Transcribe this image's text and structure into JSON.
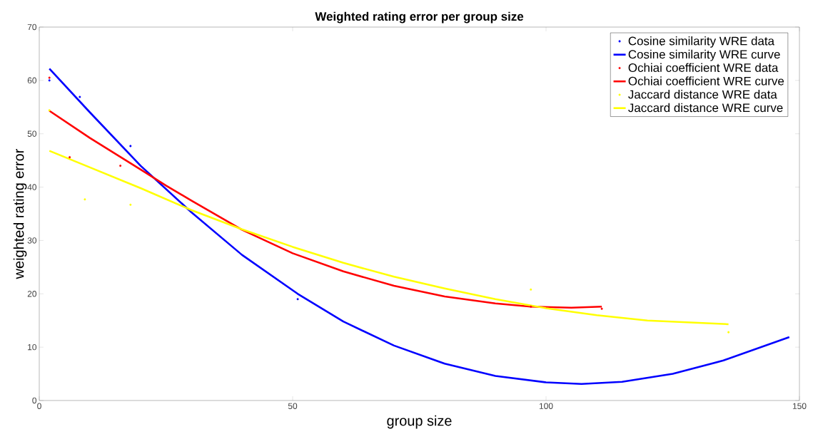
{
  "chart_data": {
    "type": "line",
    "title": "Weighted rating error per group size",
    "xlabel": "group size",
    "ylabel": "weighted rating error",
    "xlim": [
      0,
      150
    ],
    "ylim": [
      0,
      70
    ],
    "xticks": [
      0,
      50,
      100,
      150
    ],
    "yticks": [
      0,
      10,
      20,
      30,
      40,
      50,
      60,
      70
    ],
    "grid": false,
    "legend": "top right",
    "series": [
      {
        "name": "Cosine similarity WRE data",
        "type": "scatter",
        "marker": "circle",
        "color": "#0000ff",
        "x": [
          2,
          8,
          18,
          51
        ],
        "values": [
          60.0,
          56.9,
          47.7,
          19.0
        ]
      },
      {
        "name": "Cosine similarity WRE curve",
        "marker": "none",
        "color": "#0000ff",
        "x": [
          2,
          10,
          20,
          30,
          40,
          51,
          60,
          70,
          80,
          90,
          100,
          107,
          115,
          125,
          135,
          148
        ],
        "values": [
          62.2,
          54,
          44,
          35.3,
          27.3,
          20.0,
          14.8,
          10.3,
          6.9,
          4.6,
          3.4,
          3.1,
          3.5,
          5.0,
          7.5,
          11.9
        ]
      },
      {
        "name": "Ochiai coefficient WRE data",
        "type": "scatter",
        "marker": "circle",
        "color": "#ff0000",
        "x": [
          2,
          6,
          16,
          97,
          111
        ],
        "values": [
          60.5,
          45.6,
          44.0,
          17.6,
          17.2
        ]
      },
      {
        "name": "Ochiai coefficient WRE curve",
        "marker": "none",
        "color": "#ff0000",
        "x": [
          2,
          10,
          20,
          25,
          30,
          40,
          50,
          60,
          70,
          80,
          90,
          97,
          105,
          111
        ],
        "values": [
          54.3,
          49.2,
          43.3,
          40.3,
          37.5,
          32,
          27.6,
          24.2,
          21.5,
          19.5,
          18.2,
          17.6,
          17.4,
          17.6
        ]
      },
      {
        "name": "Jaccard distance WRE data",
        "type": "scatter",
        "marker": "circle",
        "color": "#ffff00",
        "x": [
          2,
          9,
          18,
          97,
          136
        ],
        "values": [
          54.4,
          37.7,
          36.7,
          20.8,
          12.8
        ]
      },
      {
        "name": "Jaccard distance WRE curve",
        "marker": "none",
        "color": "#ffff00",
        "x": [
          2,
          10,
          20,
          30,
          40,
          50,
          60,
          70,
          80,
          90,
          100,
          110,
          120,
          136
        ],
        "values": [
          46.8,
          43.7,
          39.8,
          35.7,
          32.1,
          28.8,
          25.8,
          23.2,
          21.0,
          19.0,
          17.3,
          16.0,
          15.0,
          14.3
        ]
      }
    ]
  }
}
